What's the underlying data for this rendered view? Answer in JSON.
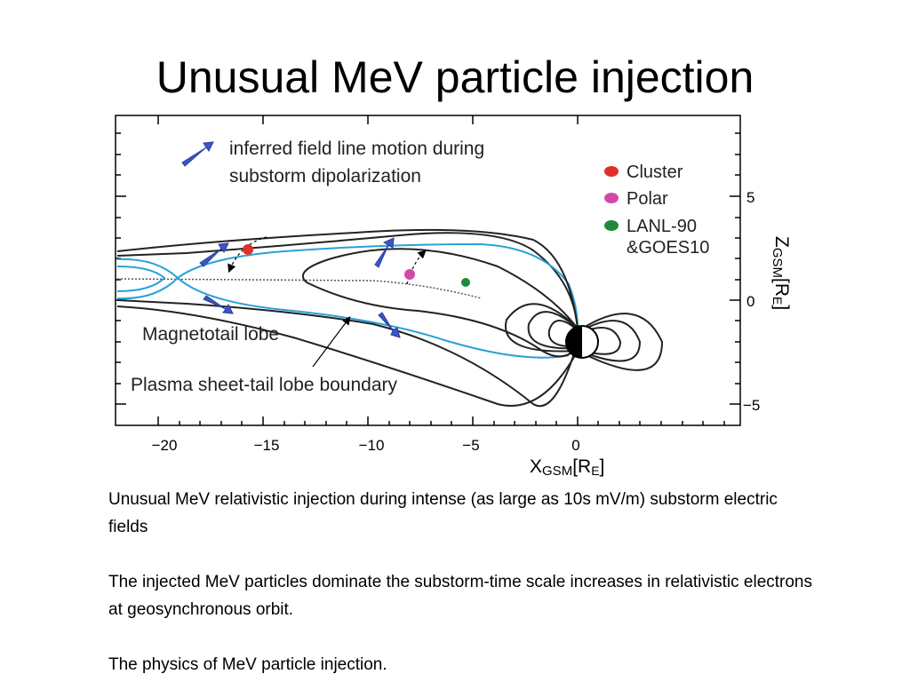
{
  "slide": {
    "title": "Unusual MeV particle injection",
    "paragraphs": [
      "Unusual MeV relativistic injection during intense (as large as 10s mV/m) substorm electric fields",
      "The injected MeV particles dominate the substorm-time scale increases in relativistic electrons at geosynchronous orbit.",
      "The physics of MeV particle injection."
    ]
  },
  "figure": {
    "arrow_legend_line1": "inferred field line motion during",
    "arrow_legend_line2": "substorm dipolarization",
    "legend": [
      {
        "label": "Cluster",
        "color": "#e0302a"
      },
      {
        "label": "Polar",
        "color": "#d24aa8"
      },
      {
        "label": "LANL-90",
        "color": "#1f8a3b"
      },
      {
        "label": "&GOES10",
        "color": ""
      }
    ],
    "region_labels": {
      "lobe": "Magnetotail lobe",
      "boundary": "Plasma sheet-tail lobe boundary"
    },
    "x_axis": {
      "ticks": [
        "−20",
        "−15",
        "−10",
        "−5",
        "0"
      ],
      "label_main": "X",
      "label_sub": "GSM",
      "label_unit": "[R",
      "label_unit_sub": "E",
      "label_close": "]"
    },
    "z_axis": {
      "ticks": [
        "5",
        "0",
        "−5"
      ],
      "label_main": "Z",
      "label_sub": "GSM",
      "label_unit": "[R",
      "label_unit_sub": "E",
      "label_close": "]"
    },
    "colors": {
      "field_line_black": "#222222",
      "field_line_blue": "#2aa0d6",
      "motion_arrow": "#3a55c4"
    }
  }
}
